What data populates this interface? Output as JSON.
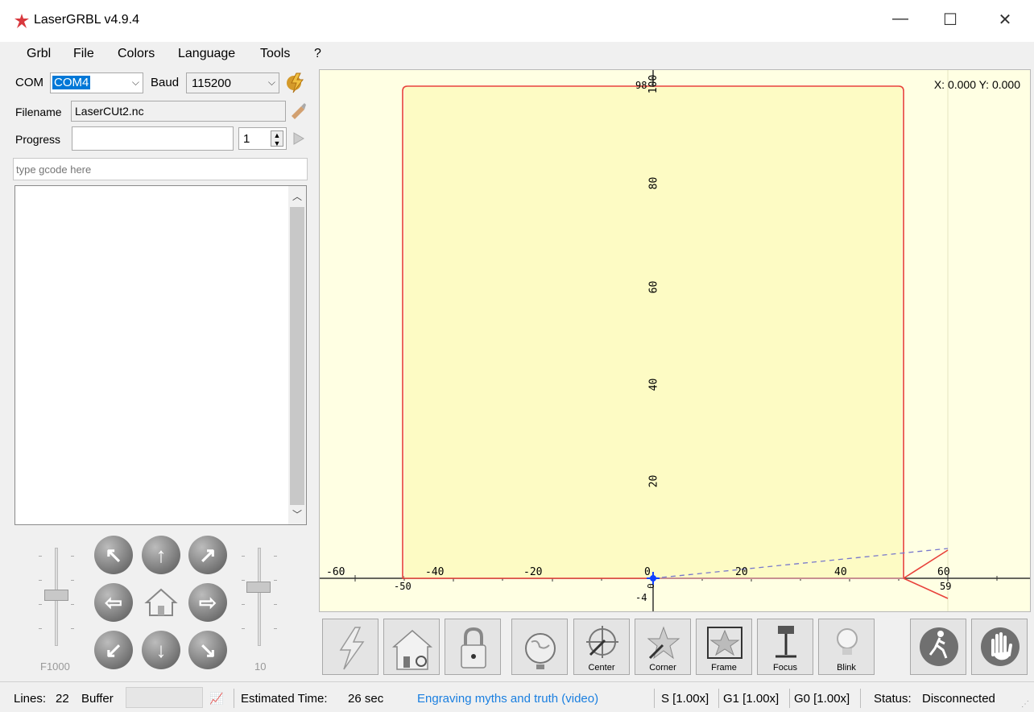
{
  "window": {
    "title": "LaserGRBL v4.9.4"
  },
  "menu": [
    "Grbl",
    "File",
    "Colors",
    "Language",
    "Tools",
    "?"
  ],
  "connection": {
    "com_label": "COM",
    "com_value": "COM4",
    "baud_label": "Baud",
    "baud_value": "115200"
  },
  "file": {
    "filename_label": "Filename",
    "filename_value": "LaserCUt2.nc"
  },
  "progress": {
    "label": "Progress",
    "passes": "1"
  },
  "gcode_input": {
    "placeholder": "type gcode here"
  },
  "jog": {
    "feed_label": "F1000",
    "step_label": "10"
  },
  "canvas": {
    "coords": "X: 0.000 Y: 0.000",
    "x_ticks": [
      "-60",
      "-40",
      "-20",
      "0",
      "20",
      "40",
      "60"
    ],
    "y_ticks": [
      "20",
      "40",
      "60",
      "80",
      "100"
    ],
    "markers": {
      "x_min": "-50",
      "x_max": "59",
      "y_min": "-4",
      "y_max": "98",
      "origin": "0"
    }
  },
  "toolbar": {
    "center": "Center",
    "corner": "Corner",
    "frame": "Frame",
    "focus": "Focus",
    "blink": "Blink"
  },
  "status": {
    "lines_label": "Lines:",
    "lines_value": "22",
    "buffer_label": "Buffer",
    "est_label": "Estimated Time:",
    "est_value": "26 sec",
    "link_text": "Engraving myths and truth (video)",
    "s_override": "S [1.00x]",
    "g1_override": "G1 [1.00x]",
    "g0_override": "G0 [1.00x]",
    "status_label": "Status:",
    "status_value": "Disconnected"
  },
  "colors": {
    "path": "#e8413a",
    "canvas_bg": "#ffffe3",
    "link": "#1a7fe0",
    "origin": "#1040ff"
  }
}
